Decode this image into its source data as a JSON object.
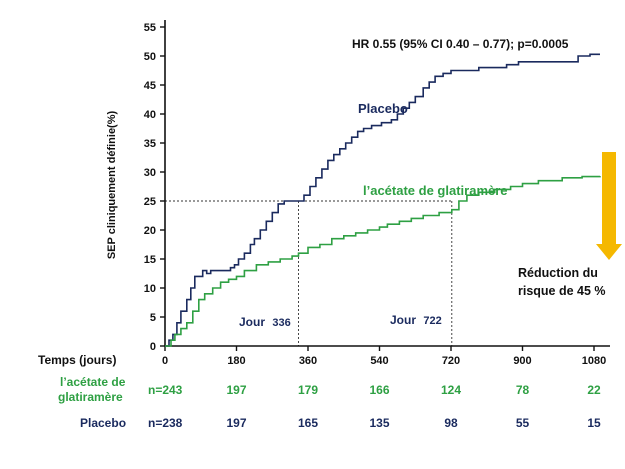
{
  "chart_data": {
    "type": "line",
    "title": "",
    "annotation_hr": "HR 0.55 (95% CI 0.40 – 0.77); p=0.0005",
    "ylabel": "SEP cliniquement définie(%)",
    "xlabel": "Temps (jours)",
    "x_ticks": [
      0,
      180,
      360,
      540,
      720,
      900,
      1080
    ],
    "y_ticks": [
      0,
      5,
      10,
      15,
      20,
      25,
      30,
      35,
      40,
      45,
      50,
      55
    ],
    "xlim": [
      0,
      1100
    ],
    "ylim": [
      0,
      57
    ],
    "grid": false,
    "colors": {
      "placebo": "#1a2a5e",
      "glatiramer": "#2ea043",
      "arrow": "#f5b800",
      "dashed": "#333333"
    },
    "series": [
      {
        "name": "Placebo",
        "points": [
          [
            0,
            0
          ],
          [
            10,
            1
          ],
          [
            20,
            2
          ],
          [
            30,
            4
          ],
          [
            40,
            6
          ],
          [
            55,
            8
          ],
          [
            65,
            10
          ],
          [
            75,
            12
          ],
          [
            95,
            13
          ],
          [
            105,
            12.5
          ],
          [
            115,
            13
          ],
          [
            130,
            13
          ],
          [
            150,
            13
          ],
          [
            165,
            13.5
          ],
          [
            175,
            14
          ],
          [
            185,
            15
          ],
          [
            200,
            16
          ],
          [
            215,
            17.5
          ],
          [
            225,
            18.5
          ],
          [
            240,
            20
          ],
          [
            255,
            21.5
          ],
          [
            270,
            23
          ],
          [
            285,
            24.5
          ],
          [
            300,
            25
          ],
          [
            320,
            25
          ],
          [
            336,
            25
          ],
          [
            350,
            26
          ],
          [
            365,
            27.5
          ],
          [
            380,
            29
          ],
          [
            395,
            30.5
          ],
          [
            410,
            32
          ],
          [
            425,
            33
          ],
          [
            440,
            34
          ],
          [
            455,
            35
          ],
          [
            470,
            36
          ],
          [
            485,
            37
          ],
          [
            500,
            37.5
          ],
          [
            520,
            38
          ],
          [
            545,
            38.5
          ],
          [
            570,
            39
          ],
          [
            585,
            40
          ],
          [
            600,
            41
          ],
          [
            615,
            42
          ],
          [
            630,
            43
          ],
          [
            650,
            44.5
          ],
          [
            665,
            45.5
          ],
          [
            680,
            46.5
          ],
          [
            700,
            47
          ],
          [
            720,
            47.5
          ],
          [
            760,
            47.5
          ],
          [
            790,
            48
          ],
          [
            830,
            48
          ],
          [
            860,
            48.5
          ],
          [
            890,
            49
          ],
          [
            940,
            49
          ],
          [
            980,
            49
          ],
          [
            1040,
            50
          ],
          [
            1070,
            50.3
          ],
          [
            1095,
            50.3
          ]
        ]
      },
      {
        "name": "l’acétate de glatiramère",
        "points": [
          [
            0,
            0
          ],
          [
            15,
            1
          ],
          [
            25,
            2
          ],
          [
            40,
            3
          ],
          [
            55,
            4
          ],
          [
            70,
            6
          ],
          [
            85,
            8
          ],
          [
            100,
            9
          ],
          [
            120,
            10
          ],
          [
            140,
            11
          ],
          [
            160,
            11.5
          ],
          [
            180,
            12
          ],
          [
            200,
            13
          ],
          [
            230,
            14
          ],
          [
            260,
            14.5
          ],
          [
            290,
            15
          ],
          [
            320,
            15.5
          ],
          [
            336,
            16
          ],
          [
            360,
            17
          ],
          [
            390,
            17.5
          ],
          [
            420,
            18.5
          ],
          [
            450,
            19
          ],
          [
            480,
            19.5
          ],
          [
            510,
            20
          ],
          [
            540,
            20.5
          ],
          [
            560,
            21
          ],
          [
            590,
            21.5
          ],
          [
            620,
            22
          ],
          [
            650,
            22.5
          ],
          [
            690,
            23
          ],
          [
            722,
            23.5
          ],
          [
            740,
            25
          ],
          [
            760,
            26
          ],
          [
            790,
            26.5
          ],
          [
            830,
            27
          ],
          [
            870,
            27.5
          ],
          [
            900,
            28
          ],
          [
            940,
            28.5
          ],
          [
            1000,
            29
          ],
          [
            1050,
            29.2
          ],
          [
            1095,
            29.3
          ]
        ]
      }
    ],
    "reference": {
      "y_level": 25,
      "x_markers": [
        336,
        722
      ]
    }
  },
  "labels": {
    "placebo": "Placebo",
    "glatiramer": "l’acétate de glatiramère",
    "jour_word": "Jour",
    "jour1_num": "336",
    "jour2_num": "722",
    "reduction_line1": "Réduction du",
    "reduction_line2": "risque de 45 %"
  },
  "risk_table": {
    "header": "Temps (jours)",
    "rows": [
      {
        "label_line1": "l’acétate de",
        "label_line2": "glatiramère",
        "values": [
          "n=243",
          "197",
          "179",
          "166",
          "124",
          "78",
          "22"
        ]
      },
      {
        "label_line1": "Placebo",
        "label_line2": "",
        "values": [
          "n=238",
          "197",
          "165",
          "135",
          "98",
          "55",
          "15"
        ]
      }
    ]
  }
}
